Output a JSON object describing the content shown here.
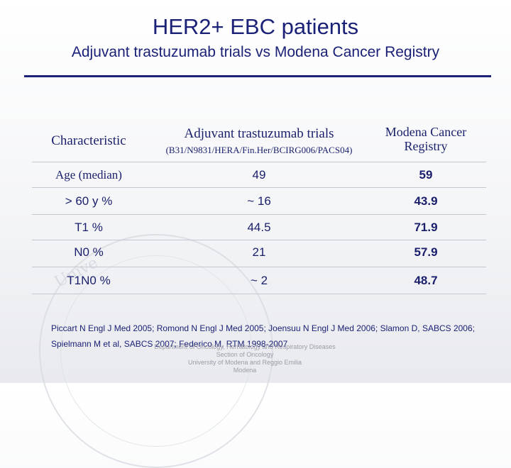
{
  "title": "HER2+ EBC patients",
  "subtitle": "Adjuvant trastuzumab trials vs Modena Cancer Registry",
  "table": {
    "headers": {
      "characteristic": "Characteristic",
      "trials": "Adjuvant trastuzumab trials",
      "trials_sub": "(B31/N9831/HERA/Fin.Her/BCIRG006/PACS04)",
      "registry_line1": "Modena Cancer",
      "registry_line2": "Registry"
    },
    "rows": [
      {
        "label": "Age (median)",
        "trials": "49",
        "registry": "59"
      },
      {
        "label": "> 60 y %",
        "trials": "~ 16",
        "registry": "43.9"
      },
      {
        "label": "T1 %",
        "trials": "44.5",
        "registry": "71.9"
      },
      {
        "label": "N0 %",
        "trials": "21",
        "registry": "57.9"
      },
      {
        "label": "T1N0 %",
        "trials": "~ 2",
        "registry": "48.7"
      }
    ]
  },
  "references": {
    "line1": "Piccart N Engl J Med 2005; Romond N Engl J Med 2005; Joensuu N Engl J Med 2006; Slamon D, SABCS 2006;",
    "line2": "Spielmann M et al, SABCS 2007; Federico M, RTM 1998-2007"
  },
  "watermark": {
    "dept_line1": "Department of Oncology, Hematology and Respiratory Diseases",
    "dept_line2": "Section of Oncology",
    "dept_line3": "University of Modena and Reggio Emilia",
    "dept_line4": "Modena",
    "seal_text": "Unive"
  }
}
